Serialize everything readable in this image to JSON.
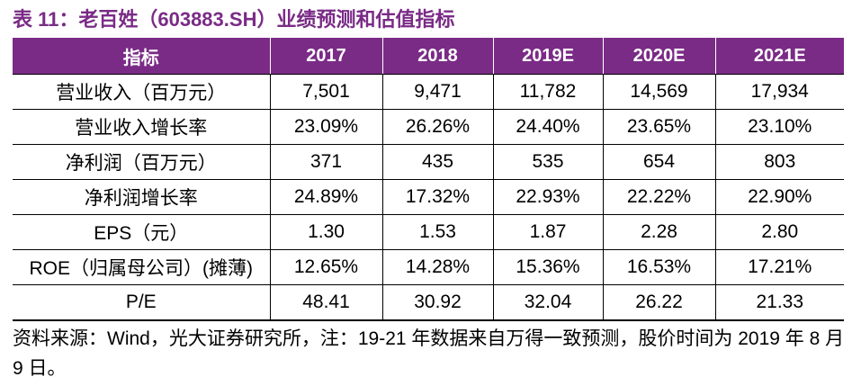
{
  "title": "表 11：老百姓（603883.SH）业绩预测和估值指标",
  "table": {
    "header": [
      "指标",
      "2017",
      "2018",
      "2019E",
      "2020E",
      "2021E"
    ],
    "rows": [
      [
        "营业收入（百万元）",
        "7,501",
        "9,471",
        "11,782",
        "14,569",
        "17,934"
      ],
      [
        "营业收入增长率",
        "23.09%",
        "26.26%",
        "24.40%",
        "23.65%",
        "23.10%"
      ],
      [
        "净利润（百万元）",
        "371",
        "435",
        "535",
        "654",
        "803"
      ],
      [
        "净利润增长率",
        "24.89%",
        "17.32%",
        "22.93%",
        "22.22%",
        "22.90%"
      ],
      [
        "EPS（元）",
        "1.30",
        "1.53",
        "1.87",
        "2.28",
        "2.80"
      ],
      [
        "ROE（归属母公司）(摊薄)",
        "12.65%",
        "14.28%",
        "15.36%",
        "16.53%",
        "17.21%"
      ],
      [
        "P/E",
        "48.41",
        "30.92",
        "32.04",
        "26.22",
        "21.33"
      ]
    ]
  },
  "footer": "资料来源：Wind，光大证券研究所，注：19-21 年数据来自万得一致预测，股价时间为 2019 年 8 月 9 日。"
}
